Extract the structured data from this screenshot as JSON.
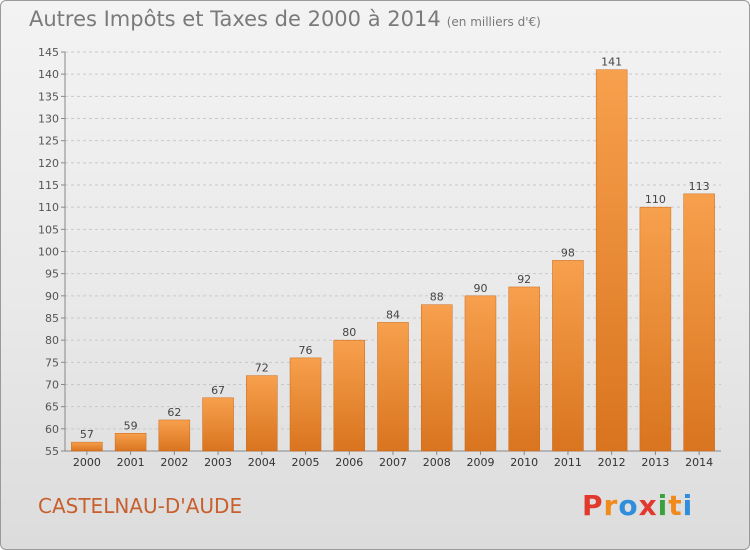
{
  "chart_data": {
    "type": "bar",
    "title": "Autres Impôts et Taxes de 2000 à 2014",
    "subtitle": "(en milliers d'€)",
    "categories": [
      "2000",
      "2001",
      "2002",
      "2003",
      "2004",
      "2005",
      "2006",
      "2007",
      "2008",
      "2009",
      "2010",
      "2011",
      "2012",
      "2013",
      "2014"
    ],
    "values": [
      57,
      59,
      62,
      67,
      72,
      76,
      80,
      84,
      88,
      90,
      92,
      98,
      141,
      110,
      113
    ],
    "xlabel": "",
    "ylabel": "",
    "ylim": [
      55,
      145
    ],
    "yticks": [
      55,
      60,
      65,
      70,
      75,
      80,
      85,
      90,
      95,
      100,
      105,
      110,
      115,
      120,
      125,
      130,
      135,
      140,
      145
    ],
    "grid": true,
    "bar_color": "#f0923c",
    "bar_color_dark": "#d9741f"
  },
  "footer": {
    "commune": "CASTELNAU-D'AUDE",
    "brand": "Proxiti",
    "brand_colors": [
      "#e2392e",
      "#f08a1c",
      "#2f8ddb",
      "#e2392e",
      "#3aa23a",
      "#f08a1c",
      "#2f8ddb"
    ]
  }
}
